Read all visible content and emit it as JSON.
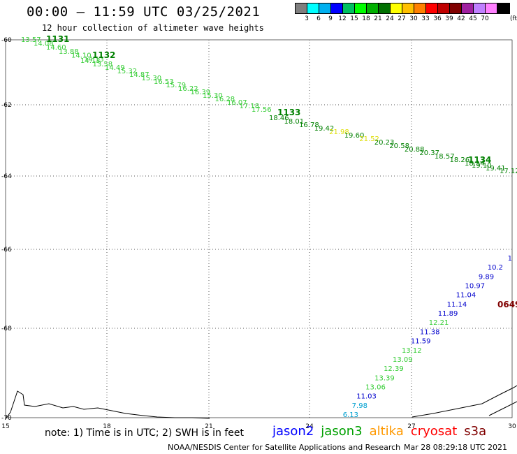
{
  "header": {
    "title": "00:00 – 11:59 UTC 03/25/2021",
    "subtitle": "12 hour collection of altimeter wave heights"
  },
  "legend": {
    "unit": "(ft)",
    "items": [
      {
        "label": "",
        "color": "#7f7f7f"
      },
      {
        "label": "3",
        "color": "#00ffff"
      },
      {
        "label": "6",
        "color": "#00b0f0"
      },
      {
        "label": "9",
        "color": "#0000ff"
      },
      {
        "label": "12",
        "color": "#00c060"
      },
      {
        "label": "15",
        "color": "#00ff00"
      },
      {
        "label": "18",
        "color": "#00b000"
      },
      {
        "label": "21",
        "color": "#007000"
      },
      {
        "label": "24",
        "color": "#ffff00"
      },
      {
        "label": "27",
        "color": "#ffc000"
      },
      {
        "label": "30",
        "color": "#ff8000"
      },
      {
        "label": "33",
        "color": "#ff0000"
      },
      {
        "label": "36",
        "color": "#c00000"
      },
      {
        "label": "39",
        "color": "#800000"
      },
      {
        "label": "42",
        "color": "#a020a0"
      },
      {
        "label": "45",
        "color": "#c080ff"
      },
      {
        "label": "70",
        "color": "#ff80ff"
      },
      {
        "label": "",
        "color": "#000000"
      }
    ]
  },
  "axes": {
    "lat_labels": [
      "-60",
      "-62",
      "-64",
      "-66",
      "-68",
      "-70"
    ],
    "lon_labels": [
      "15",
      "18",
      "21",
      "24",
      "27",
      "30"
    ]
  },
  "tracks": [
    {
      "id": "1131",
      "color": "#008000",
      "values": [
        {
          "text": "13.57",
          "color": "#33cc33"
        },
        {
          "text": "14.08",
          "color": "#33cc33"
        },
        {
          "text": "14.60",
          "color": "#33cc33"
        },
        {
          "text": "13.88",
          "color": "#33cc33"
        },
        {
          "text": "14.10",
          "color": "#33cc33"
        },
        {
          "text": "14.13",
          "color": "#33cc33"
        }
      ]
    },
    {
      "id": "1132",
      "color": "#008000",
      "values": [
        {
          "text": "14.13",
          "color": "#33cc33"
        },
        {
          "text": "13.58",
          "color": "#33cc33"
        },
        {
          "text": "14.49",
          "color": "#33cc33"
        },
        {
          "text": "15.32",
          "color": "#33cc33"
        },
        {
          "text": "14.87",
          "color": "#33cc33"
        },
        {
          "text": "15.30",
          "color": "#33cc33"
        },
        {
          "text": "16.53",
          "color": "#33cc33"
        },
        {
          "text": "15.79",
          "color": "#33cc33"
        },
        {
          "text": "16.22",
          "color": "#33cc33"
        },
        {
          "text": "16.39",
          "color": "#33cc33"
        },
        {
          "text": "15.30",
          "color": "#33cc33"
        },
        {
          "text": "16.28",
          "color": "#33cc33"
        },
        {
          "text": "16.07",
          "color": "#33cc33"
        },
        {
          "text": "17.18",
          "color": "#33cc33"
        },
        {
          "text": "17.56",
          "color": "#33cc33"
        }
      ]
    },
    {
      "id": "1133",
      "color": "#008000",
      "values": [
        {
          "text": "18.46",
          "color": "#008000"
        },
        {
          "text": "18.01",
          "color": "#008000"
        },
        {
          "text": "16.78",
          "color": "#008000"
        },
        {
          "text": "19.42",
          "color": "#008000"
        },
        {
          "text": "21.98",
          "color": "#dddd00"
        },
        {
          "text": "19.60",
          "color": "#008000"
        },
        {
          "text": "21.52",
          "color": "#dddd00"
        },
        {
          "text": "20.23",
          "color": "#008000"
        },
        {
          "text": "20.58",
          "color": "#008000"
        },
        {
          "text": "20.88",
          "color": "#008000"
        },
        {
          "text": "20.37",
          "color": "#008000"
        },
        {
          "text": "18.57",
          "color": "#008000"
        },
        {
          "text": "18.26",
          "color": "#008000"
        },
        {
          "text": "18.14",
          "color": "#008000"
        }
      ]
    },
    {
      "id": "1134",
      "color": "#008000",
      "values": [
        {
          "text": "19.10",
          "color": "#008000"
        },
        {
          "text": "19.41",
          "color": "#008000"
        },
        {
          "text": "17.12",
          "color": "#008000"
        }
      ]
    },
    {
      "id": "0649",
      "color": "#800000",
      "values": [
        {
          "text": "1",
          "color": "#0000cc"
        },
        {
          "text": "10.2",
          "color": "#0000cc"
        },
        {
          "text": "9.89",
          "color": "#0000cc"
        },
        {
          "text": "10.97",
          "color": "#0000cc"
        },
        {
          "text": "11.04",
          "color": "#0000cc"
        },
        {
          "text": "11.14",
          "color": "#0000cc"
        },
        {
          "text": "11.89",
          "color": "#0000cc"
        },
        {
          "text": "12.21",
          "color": "#33cc33"
        },
        {
          "text": "11.38",
          "color": "#0000cc"
        },
        {
          "text": "11.59",
          "color": "#0000cc"
        },
        {
          "text": "13.12",
          "color": "#33cc33"
        },
        {
          "text": "13.09",
          "color": "#33cc33"
        },
        {
          "text": "12.39",
          "color": "#33cc33"
        },
        {
          "text": "13.39",
          "color": "#33cc33"
        },
        {
          "text": "13.06",
          "color": "#33cc33"
        },
        {
          "text": "11.03",
          "color": "#0000cc"
        },
        {
          "text": "7.98",
          "color": "#00a0d0"
        },
        {
          "text": "6.13",
          "color": "#00a0d0"
        }
      ]
    }
  ],
  "footer": {
    "note": "note: 1) Time is in UTC; 2) SWH is in feet",
    "satellites": [
      {
        "name": "jason2",
        "color": "#0000ff"
      },
      {
        "name": "jason3",
        "color": "#00a000"
      },
      {
        "name": "altika",
        "color": "#ff9900"
      },
      {
        "name": "cryosat",
        "color": "#ff0000"
      },
      {
        "name": "s3a",
        "color": "#800000"
      }
    ],
    "credit": "NOAA/NESDIS Center for Satellite Applications and Research",
    "timestamp": "Mar 28 08:29:18 UTC 2021"
  }
}
